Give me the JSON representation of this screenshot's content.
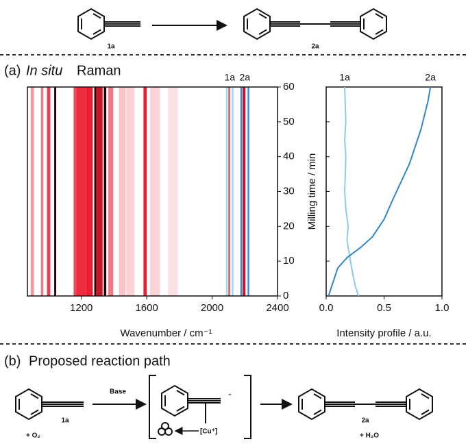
{
  "scheme_top": {
    "reactant_label": "1a",
    "product_label": "2a"
  },
  "panel_a": {
    "label": "(a)",
    "title_italic": "In situ",
    "title": "Raman"
  },
  "chart_data": [
    {
      "type": "heatmap",
      "xlabel": "Wavenumber / cm⁻¹",
      "ylabel": "Milling time / min",
      "xlim": [
        870,
        2400
      ],
      "xticks": [
        1200,
        1600,
        2000,
        2400
      ],
      "ylim": [
        0,
        60
      ],
      "yticks": [
        0,
        10,
        20,
        30,
        40,
        50,
        60
      ],
      "bands": {
        "wavenumbers": [
          900,
          960,
          1000,
          1040,
          1165,
          1200,
          1250,
          1285,
          1310,
          1345,
          1380,
          1450,
          1500,
          1590,
          1650,
          1760,
          2105,
          2195
        ],
        "widths": [
          20,
          15,
          20,
          12,
          25,
          60,
          40,
          12,
          40,
          15,
          30,
          40,
          50,
          20,
          60,
          60,
          12,
          18
        ],
        "intensities": [
          0.35,
          0.45,
          0.65,
          1.0,
          0.6,
          0.7,
          0.75,
          1.0,
          0.8,
          1.0,
          0.45,
          0.2,
          0.15,
          0.75,
          0.15,
          0.1,
          0.55,
          0.8
        ]
      },
      "markers": [
        {
          "name": "1a",
          "range": [
            2090,
            2125
          ],
          "color": "#9fd6f0"
        },
        {
          "name": "2a",
          "range": [
            2178,
            2222
          ],
          "color": "#3a8fd6"
        }
      ]
    },
    {
      "type": "line",
      "xlabel": "Intensity profile / a.u.",
      "xlim": [
        0,
        1
      ],
      "xticks": [
        {
          "value": 0,
          "label": "0.0"
        },
        {
          "value": 0.5,
          "label": "0.5"
        },
        {
          "value": 1,
          "label": "1.0"
        }
      ],
      "ylim": [
        0,
        60
      ],
      "series": [
        {
          "name": "1a",
          "color": "#8ccbe8",
          "x": [
            0.28,
            0.25,
            0.22,
            0.2,
            0.18,
            0.19,
            0.17,
            0.16,
            0.17,
            0.16,
            0.17,
            0.16
          ],
          "values": [
            0,
            3,
            8,
            12,
            16,
            20,
            25,
            30,
            40,
            45,
            50,
            60
          ]
        },
        {
          "name": "2a",
          "color": "#2f86cf",
          "x": [
            0.02,
            0.05,
            0.1,
            0.18,
            0.3,
            0.4,
            0.5,
            0.58,
            0.65,
            0.72,
            0.78,
            0.82,
            0.85,
            0.88,
            0.9
          ],
          "values": [
            0,
            3,
            8,
            11,
            14,
            17,
            22,
            28,
            33,
            38,
            44,
            48,
            52,
            56,
            60
          ]
        }
      ]
    }
  ],
  "panel_b": {
    "label": "(b)",
    "title": "Proposed reaction path",
    "reagent": "Base",
    "reactant_label": "1a",
    "reactant_extra": "+ O₂",
    "charge": "-",
    "catalyst": "[Cu⁺]",
    "product_label": "2a",
    "product_extra": "+ H₂O"
  }
}
